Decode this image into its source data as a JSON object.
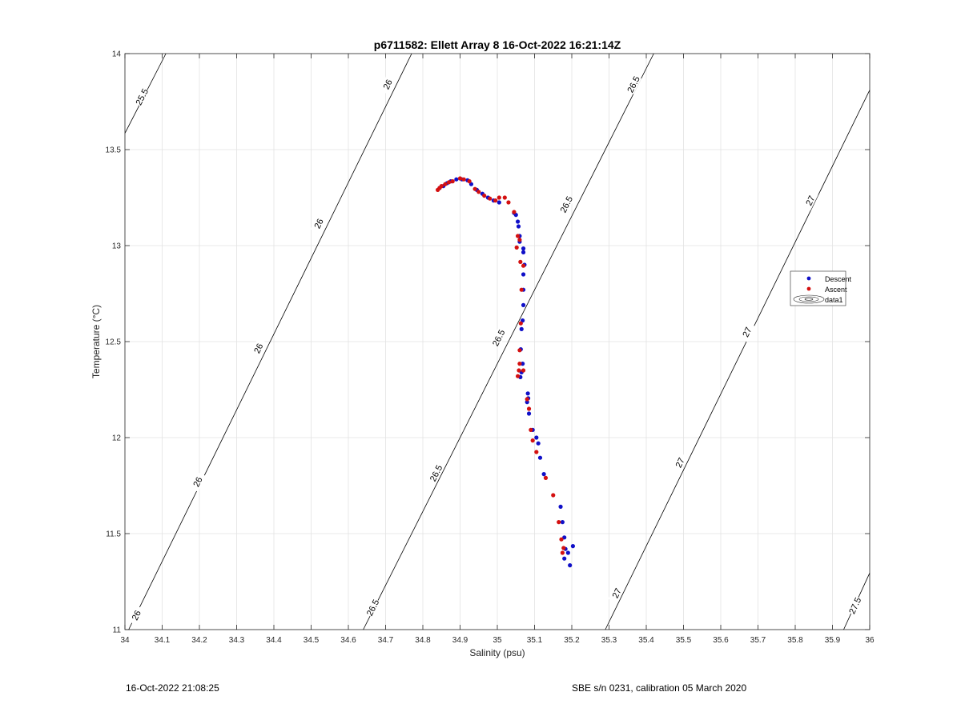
{
  "chart_data": {
    "type": "scatter",
    "title": "p6711582: Ellett Array 8 16-Oct-2022 16:21:14Z",
    "xlabel": "Salinity (psu)",
    "ylabel": "Temperature (°C)",
    "xlim": [
      34,
      36
    ],
    "ylim": [
      11,
      14
    ],
    "xticks": [
      "34",
      "34.1",
      "34.2",
      "34.3",
      "34.4",
      "34.5",
      "34.6",
      "34.7",
      "34.8",
      "34.9",
      "35",
      "35.1",
      "35.2",
      "35.3",
      "35.4",
      "35.5",
      "35.6",
      "35.7",
      "35.8",
      "35.9",
      "36"
    ],
    "yticks": [
      "11",
      "11.5",
      "12",
      "12.5",
      "13",
      "13.5",
      "14"
    ],
    "grid": true,
    "legend": {
      "position": "right",
      "entries": [
        "Descent",
        "Ascent",
        "data1"
      ]
    },
    "colors": {
      "descent": "#1010c8",
      "ascent": "#d41010",
      "contour": "#000000",
      "grid": "#e3e3e3"
    },
    "series": [
      {
        "name": "Descent",
        "points": [
          [
            34.845,
            13.3
          ],
          [
            34.855,
            13.31
          ],
          [
            34.865,
            13.325
          ],
          [
            34.875,
            13.335
          ],
          [
            34.89,
            13.345
          ],
          [
            34.905,
            13.345
          ],
          [
            34.92,
            13.34
          ],
          [
            34.93,
            13.32
          ],
          [
            34.945,
            13.29
          ],
          [
            34.96,
            13.27
          ],
          [
            34.975,
            13.25
          ],
          [
            34.99,
            13.235
          ],
          [
            35.005,
            13.225
          ],
          [
            35.045,
            13.17
          ],
          [
            35.05,
            13.16
          ],
          [
            35.055,
            13.125
          ],
          [
            35.057,
            13.1
          ],
          [
            35.06,
            13.05
          ],
          [
            35.06,
            13.02
          ],
          [
            35.07,
            12.985
          ],
          [
            35.07,
            12.965
          ],
          [
            35.073,
            12.9
          ],
          [
            35.07,
            12.85
          ],
          [
            35.07,
            12.77
          ],
          [
            35.07,
            12.69
          ],
          [
            35.068,
            12.61
          ],
          [
            35.065,
            12.565
          ],
          [
            35.063,
            12.46
          ],
          [
            35.068,
            12.385
          ],
          [
            35.065,
            12.34
          ],
          [
            35.062,
            12.315
          ],
          [
            35.082,
            12.23
          ],
          [
            35.083,
            12.205
          ],
          [
            35.08,
            12.185
          ],
          [
            35.085,
            12.125
          ],
          [
            35.095,
            12.04
          ],
          [
            35.105,
            12.0
          ],
          [
            35.11,
            11.97
          ],
          [
            35.115,
            11.895
          ],
          [
            35.125,
            11.81
          ],
          [
            35.17,
            11.64
          ],
          [
            35.175,
            11.56
          ],
          [
            35.18,
            11.48
          ],
          [
            35.183,
            11.42
          ],
          [
            35.19,
            11.4
          ],
          [
            35.18,
            11.37
          ],
          [
            35.195,
            11.335
          ],
          [
            35.203,
            11.435
          ]
        ]
      },
      {
        "name": "Ascent",
        "points": [
          [
            34.84,
            13.29
          ],
          [
            34.845,
            13.3
          ],
          [
            34.85,
            13.31
          ],
          [
            34.86,
            13.32
          ],
          [
            34.87,
            13.33
          ],
          [
            34.88,
            13.335
          ],
          [
            34.9,
            13.35
          ],
          [
            34.91,
            13.345
          ],
          [
            34.925,
            13.335
          ],
          [
            34.94,
            13.295
          ],
          [
            34.95,
            13.28
          ],
          [
            34.965,
            13.26
          ],
          [
            34.98,
            13.245
          ],
          [
            34.995,
            13.235
          ],
          [
            35.005,
            13.25
          ],
          [
            35.02,
            13.25
          ],
          [
            35.03,
            13.225
          ],
          [
            35.045,
            13.175
          ],
          [
            35.055,
            13.05
          ],
          [
            35.06,
            13.03
          ],
          [
            35.052,
            12.99
          ],
          [
            35.062,
            12.915
          ],
          [
            35.07,
            12.895
          ],
          [
            35.065,
            12.77
          ],
          [
            35.063,
            12.595
          ],
          [
            35.06,
            12.455
          ],
          [
            35.06,
            12.385
          ],
          [
            35.058,
            12.35
          ],
          [
            35.055,
            12.32
          ],
          [
            35.07,
            12.35
          ],
          [
            35.08,
            12.2
          ],
          [
            35.085,
            12.15
          ],
          [
            35.09,
            12.04
          ],
          [
            35.095,
            11.985
          ],
          [
            35.105,
            11.925
          ],
          [
            35.13,
            11.79
          ],
          [
            35.15,
            11.7
          ],
          [
            35.165,
            11.56
          ],
          [
            35.172,
            11.47
          ],
          [
            35.178,
            11.425
          ],
          [
            35.175,
            11.4
          ]
        ]
      }
    ],
    "contours": [
      {
        "label": "25.5",
        "points": [
          [
            34.0,
            13.585
          ],
          [
            34.11,
            14.0
          ]
        ],
        "labels": [
          [
            34.045,
            13.775
          ]
        ]
      },
      {
        "label": "26",
        "points": [
          [
            34.01,
            11.0
          ],
          [
            34.77,
            14.0
          ]
        ],
        "labels": [
          [
            34.03,
            11.075
          ],
          [
            34.195,
            11.77
          ],
          [
            34.358,
            12.465
          ],
          [
            34.52,
            13.115
          ],
          [
            34.705,
            13.84
          ]
        ]
      },
      {
        "label": "26.5",
        "points": [
          [
            34.64,
            11.0
          ],
          [
            35.42,
            14.0
          ]
        ],
        "labels": [
          [
            34.665,
            11.115
          ],
          [
            34.835,
            11.815
          ],
          [
            35.003,
            12.52
          ],
          [
            35.185,
            13.215
          ],
          [
            35.365,
            13.84
          ]
        ]
      },
      {
        "label": "27",
        "points": [
          [
            35.29,
            11.0
          ],
          [
            36.0,
            13.81
          ]
        ],
        "labels": [
          [
            35.32,
            11.19
          ],
          [
            35.49,
            11.87
          ],
          [
            35.67,
            12.55
          ],
          [
            35.84,
            13.235
          ]
        ]
      },
      {
        "label": "27.5",
        "points": [
          [
            35.93,
            11.0
          ],
          [
            36.0,
            11.295
          ]
        ],
        "labels": [
          [
            35.96,
            11.125
          ]
        ]
      }
    ]
  },
  "footer": {
    "left": "16-Oct-2022 21:08:25",
    "right": "SBE s/n 0231, calibration 05 March 2020"
  }
}
